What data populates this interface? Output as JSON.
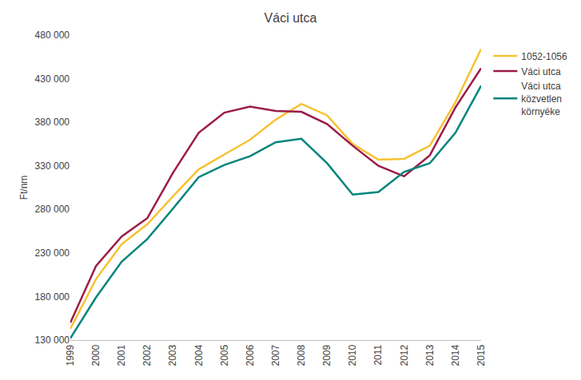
{
  "chart_data": {
    "type": "line",
    "title": "Váci utca",
    "y_label": "Ft/nm",
    "categories": [
      "1999",
      "2000",
      "2001",
      "2002",
      "2003",
      "2004",
      "2005",
      "2006",
      "2007",
      "2008",
      "2009",
      "2010",
      "2011",
      "2012",
      "2013",
      "2014",
      "2015"
    ],
    "series": [
      {
        "name": "1052-1056",
        "color": "#F7C233",
        "values": [
          143000,
          200000,
          240000,
          263000,
          295000,
          326000,
          343000,
          360000,
          383000,
          401000,
          388000,
          355000,
          337000,
          338000,
          353000,
          403000,
          464000
        ]
      },
      {
        "name": "Váci utca",
        "color": "#9C1C48",
        "values": [
          150000,
          215000,
          249000,
          270000,
          322000,
          368000,
          391000,
          398000,
          393000,
          392000,
          378000,
          353000,
          330000,
          318000,
          342000,
          397000,
          442000
        ]
      },
      {
        "name": "Váci utca közvetlen környéke",
        "color": "#00857C",
        "values": [
          132000,
          179000,
          220000,
          246000,
          281000,
          317000,
          331000,
          341000,
          357000,
          361000,
          333000,
          297000,
          300000,
          323000,
          333000,
          368000,
          422000
        ]
      }
    ],
    "ylim": [
      130000,
      480000
    ],
    "yticks": [
      {
        "value": 130000,
        "label": "130 000"
      },
      {
        "value": 180000,
        "label": "180 000"
      },
      {
        "value": 230000,
        "label": "230 000"
      },
      {
        "value": 280000,
        "label": "280 000"
      },
      {
        "value": 330000,
        "label": "330 000"
      },
      {
        "value": 380000,
        "label": "380 000"
      },
      {
        "value": 430000,
        "label": "430 000"
      },
      {
        "value": 480000,
        "label": "480 000"
      }
    ],
    "grid": false,
    "legend": "right"
  }
}
